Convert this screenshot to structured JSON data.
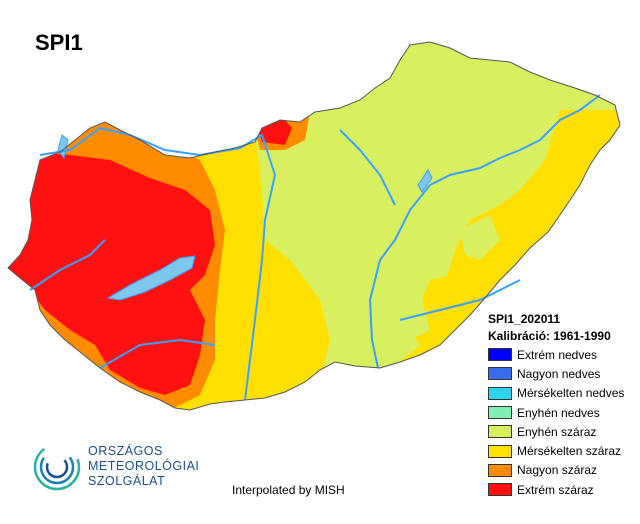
{
  "title": "SPI1",
  "legend": {
    "period": "SPI1_202011",
    "calibration": "Kalibráció: 1961-1990",
    "items": [
      {
        "label": "Extrém nedves",
        "color": "#0000ff"
      },
      {
        "label": "Nagyon nedves",
        "color": "#3a6cf0"
      },
      {
        "label": "Mérsékelten nedves",
        "color": "#2ed3f0"
      },
      {
        "label": "Enyhén nedves",
        "color": "#80f0b0"
      },
      {
        "label": "Enyhén száraz",
        "color": "#d8f060"
      },
      {
        "label": "Mérsékelten száraz",
        "color": "#ffe000"
      },
      {
        "label": "Nagyon száraz",
        "color": "#ff8c00"
      },
      {
        "label": "Extrém száraz",
        "color": "#ff1010"
      }
    ]
  },
  "credit": "Interpolated by MISH",
  "logo": {
    "line1": "ORSZÁGOS",
    "line2": "METEOROLÓGIAI",
    "line3": "SZOLGÁLAT"
  },
  "colors": {
    "river": "#3aa0ff",
    "lake": "#7ec8f0",
    "border": "#555555"
  }
}
